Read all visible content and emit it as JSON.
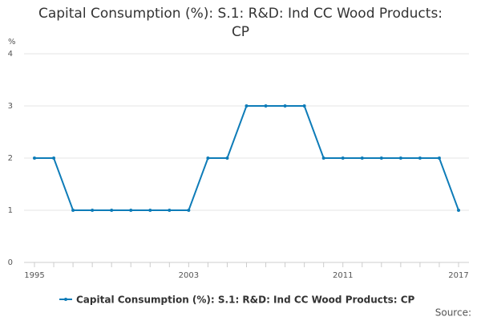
{
  "chart_data": {
    "type": "line",
    "title": "Capital Consumption (%): S.1: R&D: Ind CC Wood Products: CP",
    "y_unit": "%",
    "source": "Source:",
    "x": [
      1995,
      1996,
      1997,
      1998,
      1999,
      2000,
      2001,
      2002,
      2003,
      2004,
      2005,
      2006,
      2007,
      2008,
      2009,
      2010,
      2011,
      2012,
      2013,
      2014,
      2015,
      2016,
      2017
    ],
    "series": [
      {
        "name": "Capital Consumption (%): S.1: R&D: Ind CC Wood Products: CP",
        "color": "#0e7cb8",
        "values": [
          2,
          2,
          1,
          1,
          1,
          1,
          1,
          1,
          1,
          2,
          2,
          3,
          3,
          3,
          3,
          2,
          2,
          2,
          2,
          2,
          2,
          2,
          1
        ]
      }
    ],
    "xlim": [
      1995,
      2017
    ],
    "xticks": [
      1995,
      2003,
      2011,
      2017
    ],
    "ylim": [
      0,
      4
    ],
    "yticks": [
      0,
      1,
      2,
      3,
      4
    ],
    "grid": true
  }
}
